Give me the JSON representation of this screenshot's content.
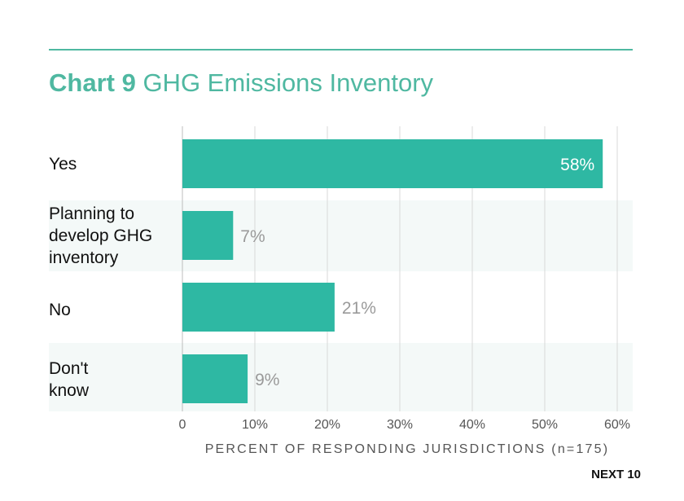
{
  "title_prefix": "Chart 9",
  "title_text": "GHG Emissions Inventory",
  "footer": "NEXT 10",
  "chart_data": {
    "type": "bar",
    "orientation": "horizontal",
    "categories": [
      "Yes",
      "Planning to\ndevelop GHG\ninventory",
      "No",
      "Don't\nknow"
    ],
    "values": [
      58,
      7,
      21,
      9
    ],
    "value_labels": [
      "58%",
      "7%",
      "21%",
      "9%"
    ],
    "xlabel": "PERCENT OF RESPONDING JURISDICTIONS (n=175)",
    "xlim": [
      0,
      60
    ],
    "xticks": [
      0,
      10,
      20,
      30,
      40,
      50,
      60
    ],
    "xtick_labels": [
      "0",
      "10%",
      "20%",
      "30%",
      "40%",
      "50%",
      "60%"
    ],
    "grid": "vertical",
    "colors": {
      "bar": "#2eb8a3",
      "title": "#4fb8a1",
      "band": "#f4f9f8",
      "grid": "#d9d9d9",
      "label_inside": "#ffffff",
      "label_outside": "#9a9a9a",
      "axis_text": "#555555"
    }
  }
}
